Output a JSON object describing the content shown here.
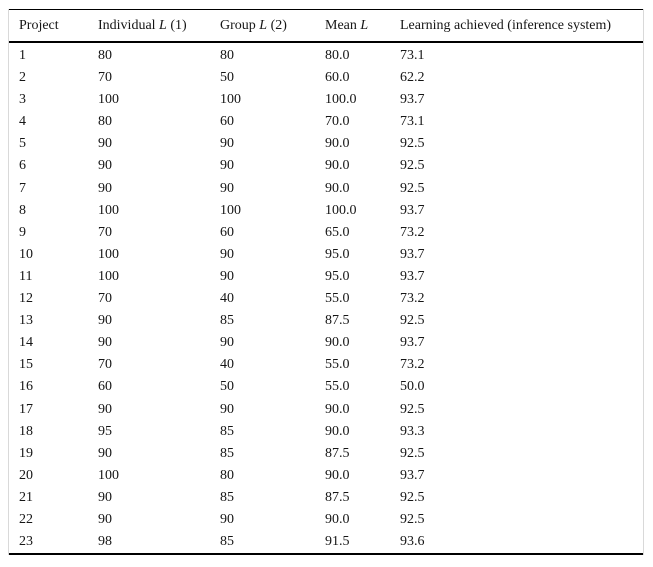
{
  "colors": {
    "background": "#ffffff",
    "text": "#151515",
    "rule": "#000000",
    "frame_side": "#d9d9d9"
  },
  "table": {
    "headers": [
      {
        "pre": "Project",
        "it": "",
        "post": ""
      },
      {
        "pre": "Individual ",
        "it": "L",
        "post": " (1)"
      },
      {
        "pre": "Group ",
        "it": "L",
        "post": " (2)"
      },
      {
        "pre": "Mean ",
        "it": "L",
        "post": ""
      },
      {
        "pre": "Learning achieved (inference system)",
        "it": "",
        "post": ""
      }
    ],
    "rows": [
      [
        "1",
        "80",
        "80",
        "80.0",
        "73.1"
      ],
      [
        "2",
        "70",
        "50",
        "60.0",
        "62.2"
      ],
      [
        "3",
        "100",
        "100",
        "100.0",
        "93.7"
      ],
      [
        "4",
        "80",
        "60",
        "70.0",
        "73.1"
      ],
      [
        "5",
        "90",
        "90",
        "90.0",
        "92.5"
      ],
      [
        "6",
        "90",
        "90",
        "90.0",
        "92.5"
      ],
      [
        "7",
        "90",
        "90",
        "90.0",
        "92.5"
      ],
      [
        "8",
        "100",
        "100",
        "100.0",
        "93.7"
      ],
      [
        "9",
        "70",
        "60",
        "65.0",
        "73.2"
      ],
      [
        "10",
        "100",
        "90",
        "95.0",
        "93.7"
      ],
      [
        "11",
        "100",
        "90",
        "95.0",
        "93.7"
      ],
      [
        "12",
        "70",
        "40",
        "55.0",
        "73.2"
      ],
      [
        "13",
        "90",
        "85",
        "87.5",
        "92.5"
      ],
      [
        "14",
        "90",
        "90",
        "90.0",
        "93.7"
      ],
      [
        "15",
        "70",
        "40",
        "55.0",
        "73.2"
      ],
      [
        "16",
        "60",
        "50",
        "55.0",
        "50.0"
      ],
      [
        "17",
        "90",
        "90",
        "90.0",
        "92.5"
      ],
      [
        "18",
        "95",
        "85",
        "90.0",
        "93.3"
      ],
      [
        "19",
        "90",
        "85",
        "87.5",
        "92.5"
      ],
      [
        "20",
        "100",
        "80",
        "90.0",
        "93.7"
      ],
      [
        "21",
        "90",
        "85",
        "87.5",
        "92.5"
      ],
      [
        "22",
        "90",
        "90",
        "90.0",
        "92.5"
      ],
      [
        "23",
        "98",
        "85",
        "91.5",
        "93.6"
      ]
    ]
  }
}
